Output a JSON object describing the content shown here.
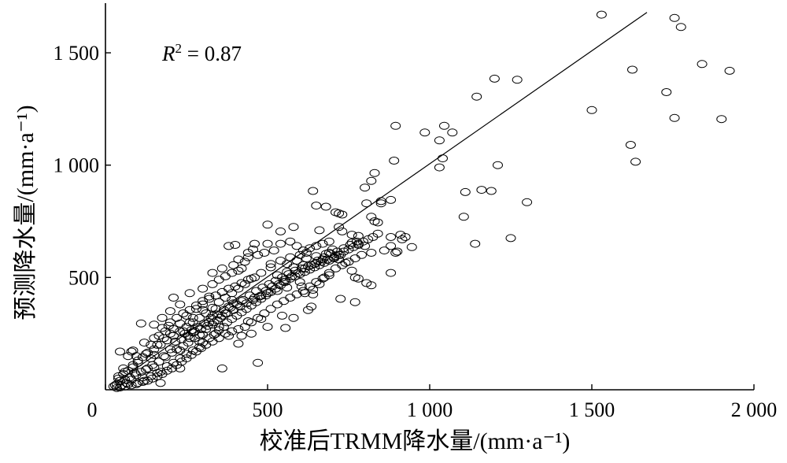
{
  "chart_data": {
    "type": "scatter",
    "xlabel": "校准后TRMM降水量/(mm·a⁻¹)",
    "ylabel": "预测降水量/(mm·a⁻¹)",
    "xlim": [
      0,
      2000
    ],
    "ylim": [
      0,
      1700
    ],
    "xticks": [
      0,
      500,
      1000,
      1500,
      2000
    ],
    "xtick_labels": [
      "0",
      "500",
      "1 000",
      "1 500",
      "2 000"
    ],
    "yticks": [
      500,
      1000,
      1500
    ],
    "ytick_labels": [
      "500",
      "1 000",
      "1 500"
    ],
    "annotation": {
      "label": "R",
      "superscript": "2",
      "rest": " = 0.87"
    },
    "grid": false,
    "marker": "open-circle",
    "fit_line": {
      "x": [
        30,
        1670
      ],
      "y": [
        30,
        1680
      ]
    },
    "points": [
      [
        1530,
        1670
      ],
      [
        1755,
        1655
      ],
      [
        1775,
        1615
      ],
      [
        1840,
        1450
      ],
      [
        1925,
        1420
      ],
      [
        1625,
        1425
      ],
      [
        1200,
        1385
      ],
      [
        1270,
        1380
      ],
      [
        1145,
        1305
      ],
      [
        1730,
        1325
      ],
      [
        1500,
        1245
      ],
      [
        1755,
        1210
      ],
      [
        1900,
        1205
      ],
      [
        895,
        1175
      ],
      [
        1045,
        1175
      ],
      [
        985,
        1145
      ],
      [
        1070,
        1145
      ],
      [
        1030,
        1110
      ],
      [
        1620,
        1090
      ],
      [
        1040,
        1030
      ],
      [
        1635,
        1015
      ],
      [
        890,
        1020
      ],
      [
        1210,
        1000
      ],
      [
        1030,
        990
      ],
      [
        830,
        965
      ],
      [
        820,
        930
      ],
      [
        800,
        900
      ],
      [
        640,
        885
      ],
      [
        1110,
        880
      ],
      [
        1160,
        890
      ],
      [
        1190,
        885
      ],
      [
        1300,
        835
      ],
      [
        880,
        845
      ],
      [
        850,
        830
      ],
      [
        850,
        840
      ],
      [
        805,
        830
      ],
      [
        650,
        820
      ],
      [
        680,
        815
      ],
      [
        710,
        790
      ],
      [
        720,
        785
      ],
      [
        730,
        780
      ],
      [
        1105,
        770
      ],
      [
        820,
        770
      ],
      [
        830,
        750
      ],
      [
        840,
        745
      ],
      [
        580,
        725
      ],
      [
        720,
        725
      ],
      [
        660,
        710
      ],
      [
        500,
        735
      ],
      [
        540,
        705
      ],
      [
        730,
        705
      ],
      [
        760,
        690
      ],
      [
        780,
        685
      ],
      [
        880,
        680
      ],
      [
        910,
        690
      ],
      [
        915,
        670
      ],
      [
        1250,
        675
      ],
      [
        760,
        655
      ],
      [
        780,
        645
      ],
      [
        800,
        640
      ],
      [
        820,
        610
      ],
      [
        860,
        620
      ],
      [
        880,
        640
      ],
      [
        895,
        610
      ],
      [
        900,
        615
      ],
      [
        1140,
        650
      ],
      [
        945,
        635
      ],
      [
        925,
        680
      ],
      [
        690,
        610
      ],
      [
        700,
        625
      ],
      [
        710,
        595
      ],
      [
        720,
        580
      ],
      [
        740,
        565
      ],
      [
        760,
        530
      ],
      [
        770,
        500
      ],
      [
        780,
        495
      ],
      [
        880,
        520
      ],
      [
        805,
        475
      ],
      [
        820,
        465
      ],
      [
        725,
        405
      ],
      [
        770,
        390
      ],
      [
        640,
        425
      ],
      [
        605,
        460
      ],
      [
        625,
        355
      ],
      [
        635,
        370
      ],
      [
        545,
        330
      ],
      [
        580,
        320
      ],
      [
        555,
        275
      ],
      [
        500,
        280
      ],
      [
        440,
        305
      ],
      [
        480,
        315
      ],
      [
        470,
        120
      ],
      [
        420,
        240
      ],
      [
        410,
        205
      ],
      [
        360,
        95
      ],
      [
        230,
        95
      ],
      [
        170,
        30
      ],
      [
        45,
        170
      ],
      [
        70,
        150
      ],
      [
        80,
        170
      ],
      [
        85,
        175
      ],
      [
        110,
        295
      ],
      [
        150,
        290
      ],
      [
        175,
        275
      ],
      [
        195,
        285
      ],
      [
        210,
        270
      ],
      [
        240,
        260
      ],
      [
        270,
        255
      ],
      [
        300,
        245
      ],
      [
        340,
        250
      ],
      [
        380,
        240
      ],
      [
        330,
        330
      ],
      [
        320,
        300
      ],
      [
        350,
        280
      ],
      [
        340,
        360
      ],
      [
        300,
        355
      ],
      [
        370,
        340
      ],
      [
        390,
        400
      ],
      [
        320,
        415
      ],
      [
        300,
        380
      ],
      [
        420,
        395
      ],
      [
        460,
        410
      ],
      [
        480,
        420
      ],
      [
        500,
        430
      ],
      [
        530,
        440
      ],
      [
        560,
        455
      ],
      [
        550,
        480
      ],
      [
        600,
        480
      ],
      [
        615,
        430
      ],
      [
        640,
        445
      ],
      [
        660,
        470
      ],
      [
        675,
        500
      ],
      [
        690,
        510
      ],
      [
        530,
        510
      ],
      [
        560,
        525
      ],
      [
        580,
        545
      ],
      [
        610,
        555
      ],
      [
        650,
        565
      ],
      [
        670,
        580
      ],
      [
        510,
        560
      ],
      [
        520,
        620
      ],
      [
        455,
        625
      ],
      [
        470,
        600
      ],
      [
        440,
        590
      ],
      [
        430,
        570
      ],
      [
        395,
        555
      ],
      [
        420,
        540
      ],
      [
        380,
        640
      ],
      [
        400,
        645
      ],
      [
        250,
        330
      ],
      [
        270,
        320
      ],
      [
        200,
        350
      ],
      [
        280,
        360
      ],
      [
        260,
        300
      ],
      [
        230,
        295
      ],
      [
        260,
        230
      ],
      [
        290,
        215
      ],
      [
        230,
        175
      ],
      [
        200,
        180
      ],
      [
        180,
        150
      ],
      [
        150,
        155
      ],
      [
        125,
        160
      ],
      [
        100,
        130
      ],
      [
        60,
        80
      ],
      [
        40,
        60
      ],
      [
        55,
        95
      ],
      [
        85,
        110
      ],
      [
        90,
        75
      ],
      [
        125,
        90
      ],
      [
        150,
        100
      ],
      [
        160,
        75
      ],
      [
        115,
        55
      ],
      [
        80,
        45
      ],
      [
        65,
        30
      ],
      [
        45,
        40
      ],
      [
        35,
        25
      ],
      [
        30,
        20
      ],
      [
        25,
        15
      ],
      [
        50,
        20
      ],
      [
        70,
        25
      ],
      [
        100,
        30
      ],
      [
        120,
        40
      ],
      [
        140,
        60
      ],
      [
        170,
        80
      ],
      [
        190,
        105
      ],
      [
        210,
        120
      ],
      [
        230,
        140
      ],
      [
        250,
        160
      ],
      [
        270,
        175
      ],
      [
        290,
        190
      ],
      [
        300,
        210
      ],
      [
        320,
        230
      ],
      [
        335,
        245
      ],
      [
        350,
        265
      ],
      [
        365,
        280
      ],
      [
        375,
        300
      ],
      [
        390,
        315
      ],
      [
        405,
        330
      ],
      [
        420,
        345
      ],
      [
        435,
        360
      ],
      [
        450,
        375
      ],
      [
        465,
        390
      ],
      [
        480,
        405
      ],
      [
        495,
        420
      ],
      [
        510,
        435
      ],
      [
        525,
        450
      ],
      [
        540,
        465
      ],
      [
        555,
        480
      ],
      [
        570,
        495
      ],
      [
        585,
        505
      ],
      [
        600,
        515
      ],
      [
        615,
        525
      ],
      [
        630,
        535
      ],
      [
        645,
        545
      ],
      [
        660,
        555
      ],
      [
        675,
        565
      ],
      [
        690,
        575
      ],
      [
        705,
        585
      ],
      [
        720,
        600
      ],
      [
        735,
        615
      ],
      [
        750,
        625
      ],
      [
        765,
        635
      ],
      [
        780,
        650
      ],
      [
        795,
        660
      ],
      [
        810,
        670
      ],
      [
        825,
        680
      ],
      [
        840,
        695
      ],
      [
        380,
        370
      ],
      [
        395,
        385
      ],
      [
        360,
        330
      ],
      [
        345,
        310
      ],
      [
        330,
        290
      ],
      [
        310,
        270
      ],
      [
        290,
        245
      ],
      [
        275,
        230
      ],
      [
        255,
        210
      ],
      [
        240,
        195
      ],
      [
        220,
        180
      ],
      [
        205,
        165
      ],
      [
        185,
        145
      ],
      [
        165,
        125
      ],
      [
        145,
        110
      ],
      [
        130,
        95
      ],
      [
        110,
        80
      ],
      [
        95,
        65
      ],
      [
        75,
        55
      ],
      [
        60,
        45
      ],
      [
        245,
        250
      ],
      [
        265,
        265
      ],
      [
        285,
        280
      ],
      [
        305,
        295
      ],
      [
        325,
        320
      ],
      [
        345,
        335
      ],
      [
        365,
        355
      ],
      [
        385,
        365
      ],
      [
        405,
        380
      ],
      [
        425,
        400
      ],
      [
        445,
        420
      ],
      [
        465,
        440
      ],
      [
        485,
        455
      ],
      [
        505,
        470
      ],
      [
        525,
        485
      ],
      [
        545,
        500
      ],
      [
        565,
        515
      ],
      [
        585,
        530
      ],
      [
        605,
        540
      ],
      [
        625,
        550
      ],
      [
        645,
        560
      ],
      [
        665,
        570
      ],
      [
        685,
        580
      ],
      [
        705,
        590
      ],
      [
        725,
        600
      ],
      [
        560,
        560
      ],
      [
        590,
        575
      ],
      [
        620,
        585
      ],
      [
        650,
        595
      ],
      [
        680,
        605
      ],
      [
        620,
        610
      ],
      [
        600,
        600
      ],
      [
        570,
        590
      ],
      [
        540,
        575
      ],
      [
        510,
        545
      ],
      [
        480,
        520
      ],
      [
        450,
        495
      ],
      [
        430,
        470
      ],
      [
        410,
        450
      ],
      [
        390,
        430
      ],
      [
        370,
        410
      ],
      [
        350,
        390
      ],
      [
        330,
        365
      ],
      [
        310,
        340
      ],
      [
        290,
        320
      ],
      [
        270,
        300
      ],
      [
        250,
        280
      ],
      [
        230,
        260
      ],
      [
        210,
        240
      ],
      [
        190,
        220
      ],
      [
        170,
        200
      ],
      [
        150,
        180
      ],
      [
        130,
        165
      ],
      [
        115,
        145
      ],
      [
        100,
        120
      ],
      [
        85,
        100
      ],
      [
        70,
        85
      ],
      [
        55,
        70
      ],
      [
        40,
        50
      ],
      [
        95,
        150
      ],
      [
        140,
        140
      ],
      [
        160,
        200
      ],
      [
        180,
        230
      ],
      [
        200,
        250
      ],
      [
        215,
        215
      ],
      [
        235,
        225
      ],
      [
        255,
        240
      ],
      [
        275,
        260
      ],
      [
        295,
        270
      ],
      [
        315,
        285
      ],
      [
        335,
        300
      ],
      [
        355,
        320
      ],
      [
        375,
        340
      ],
      [
        395,
        355
      ],
      [
        415,
        370
      ],
      [
        435,
        385
      ],
      [
        455,
        400
      ],
      [
        475,
        415
      ],
      [
        495,
        440
      ],
      [
        515,
        460
      ],
      [
        535,
        470
      ],
      [
        555,
        490
      ],
      [
        575,
        505
      ],
      [
        595,
        520
      ],
      [
        615,
        540
      ],
      [
        635,
        555
      ],
      [
        655,
        575
      ],
      [
        675,
        590
      ],
      [
        695,
        605
      ],
      [
        715,
        615
      ],
      [
        735,
        630
      ],
      [
        755,
        645
      ],
      [
        775,
        660
      ],
      [
        140,
        200
      ],
      [
        120,
        210
      ],
      [
        165,
        240
      ],
      [
        185,
        260
      ],
      [
        200,
        300
      ],
      [
        220,
        320
      ],
      [
        240,
        340
      ],
      [
        260,
        355
      ],
      [
        280,
        375
      ],
      [
        300,
        395
      ],
      [
        320,
        405
      ],
      [
        340,
        420
      ],
      [
        360,
        435
      ],
      [
        380,
        450
      ],
      [
        400,
        460
      ],
      [
        420,
        475
      ],
      [
        440,
        490
      ],
      [
        460,
        500
      ],
      [
        430,
        280
      ],
      [
        450,
        300
      ],
      [
        470,
        320
      ],
      [
        490,
        340
      ],
      [
        510,
        360
      ],
      [
        530,
        380
      ],
      [
        550,
        395
      ],
      [
        570,
        410
      ],
      [
        590,
        425
      ],
      [
        610,
        440
      ],
      [
        630,
        460
      ],
      [
        650,
        480
      ],
      [
        670,
        495
      ],
      [
        690,
        520
      ],
      [
        710,
        540
      ],
      [
        730,
        555
      ],
      [
        750,
        570
      ],
      [
        770,
        585
      ],
      [
        790,
        600
      ],
      [
        450,
        250
      ],
      [
        410,
        270
      ],
      [
        390,
        260
      ],
      [
        370,
        250
      ],
      [
        350,
        230
      ],
      [
        330,
        215
      ],
      [
        310,
        200
      ],
      [
        295,
        185
      ],
      [
        280,
        170
      ],
      [
        265,
        155
      ],
      [
        250,
        140
      ],
      [
        235,
        125
      ],
      [
        220,
        110
      ],
      [
        205,
        95
      ],
      [
        190,
        85
      ],
      [
        175,
        70
      ],
      [
        160,
        60
      ],
      [
        145,
        50
      ],
      [
        130,
        40
      ],
      [
        115,
        35
      ],
      [
        95,
        25
      ],
      [
        80,
        20
      ],
      [
        60,
        15
      ],
      [
        45,
        10
      ],
      [
        35,
        8
      ],
      [
        150,
        230
      ],
      [
        175,
        320
      ],
      [
        230,
        380
      ],
      [
        210,
        410
      ],
      [
        260,
        430
      ],
      [
        300,
        450
      ],
      [
        330,
        470
      ],
      [
        350,
        490
      ],
      [
        370,
        505
      ],
      [
        390,
        520
      ],
      [
        410,
        530
      ],
      [
        330,
        520
      ],
      [
        360,
        540
      ],
      [
        410,
        580
      ],
      [
        440,
        610
      ],
      [
        490,
        610
      ],
      [
        500,
        650
      ],
      [
        460,
        650
      ],
      [
        540,
        650
      ],
      [
        570,
        660
      ],
      [
        590,
        640
      ],
      [
        610,
        620
      ],
      [
        630,
        630
      ],
      [
        650,
        640
      ],
      [
        670,
        650
      ],
      [
        690,
        660
      ]
    ]
  }
}
